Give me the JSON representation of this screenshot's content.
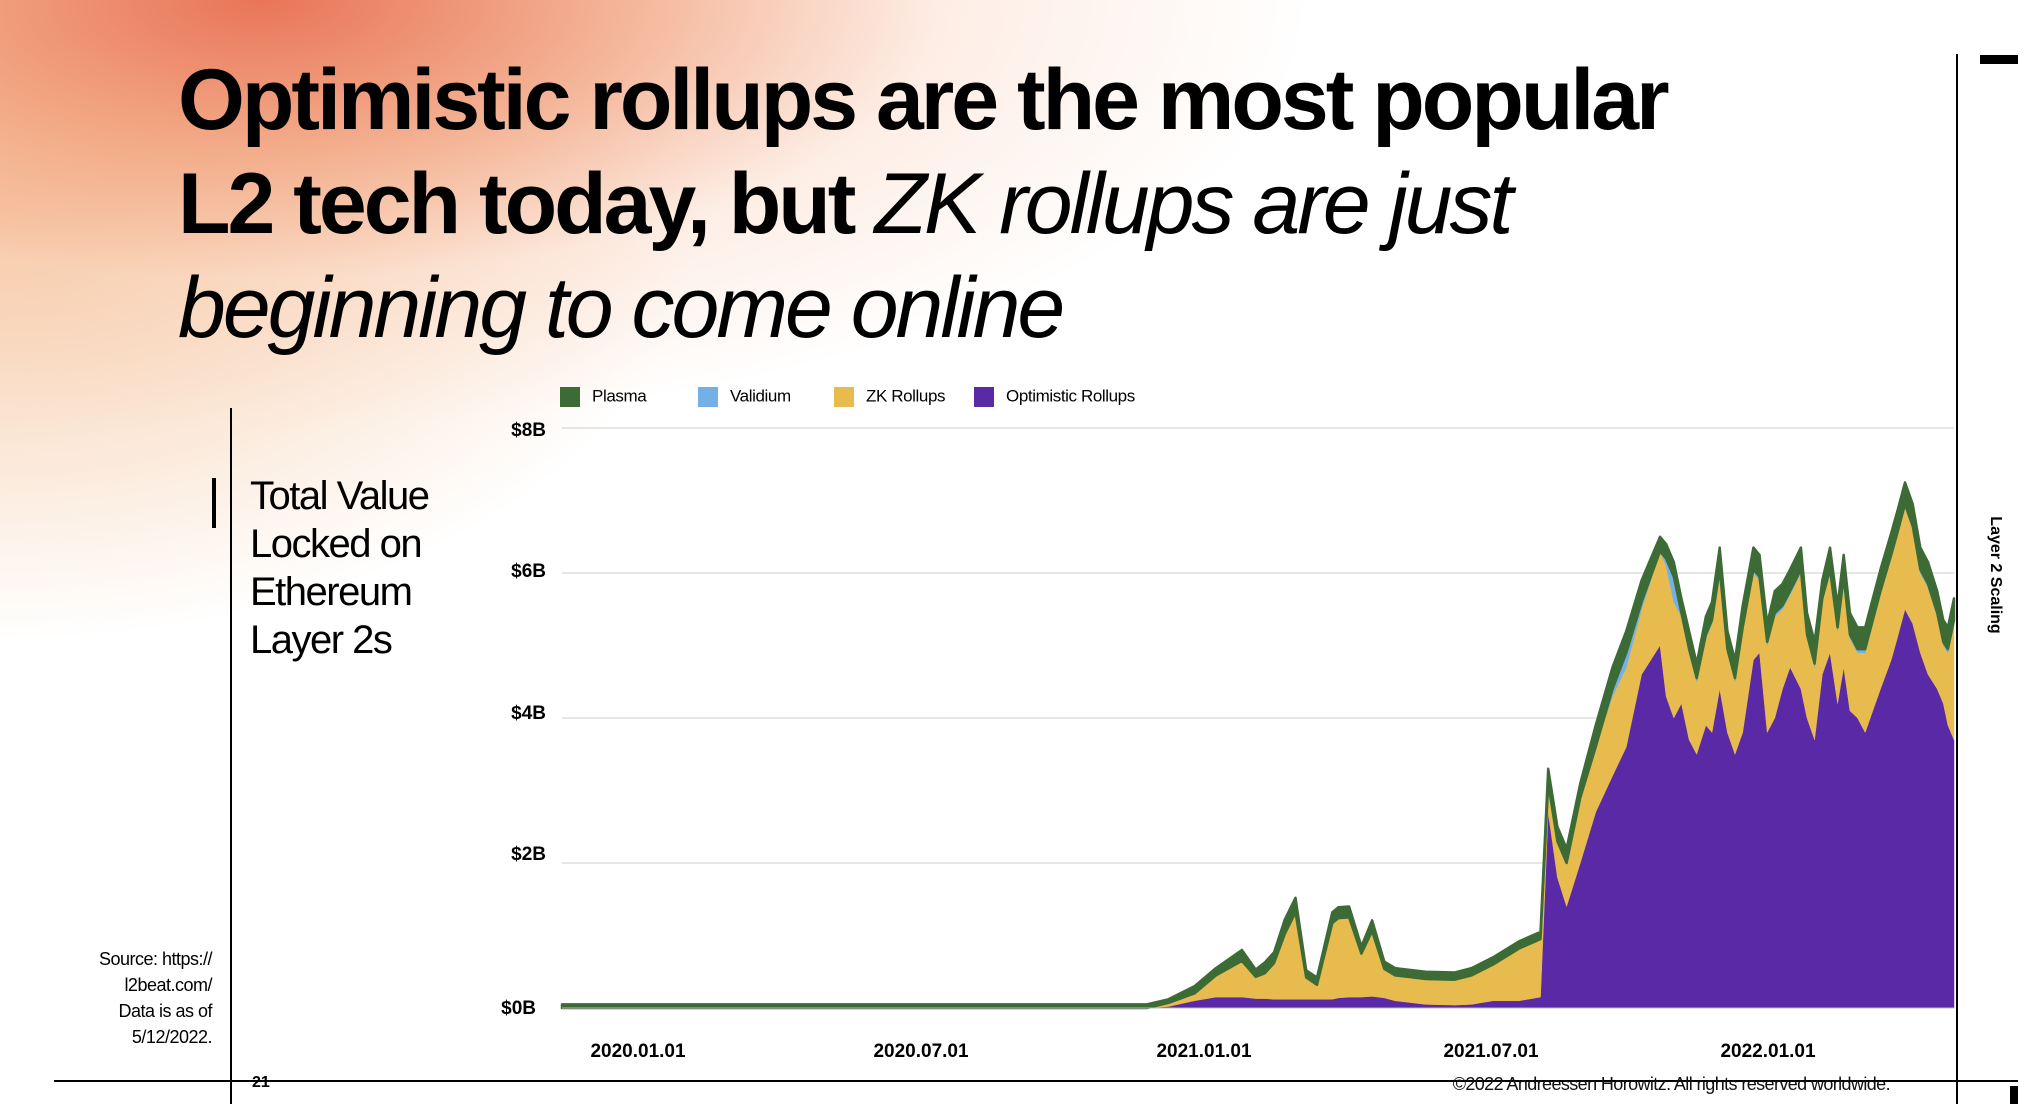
{
  "slide": {
    "title_bold": "Optimistic rollups are the most popular L2 tech today, but",
    "title_italic": "ZK rollups are just beginning to come online",
    "side_title_lines": [
      "Total Value",
      "Locked on",
      "Ethereum",
      "Layer 2s"
    ],
    "source_lines": [
      "Source: https://",
      "l2beat.com/",
      "Data is as of",
      "5/12/2022."
    ],
    "page_number": "21",
    "copyright": "©2022 Andreessen Horowitz. All rights reserved worldwide.",
    "section_label": "Layer 2 Scaling"
  },
  "chart_data": {
    "type": "area",
    "stacked": true,
    "y_tick_labels": [
      "$0B",
      "$2B",
      "$4B",
      "$6B",
      "$8B"
    ],
    "y_ticks": [
      0,
      2,
      4,
      6,
      8
    ],
    "ylim": [
      0,
      8
    ],
    "y_unit": "billion USD",
    "x_tick_labels": [
      "2020.01.01",
      "2020.07.01",
      "2021.01.01",
      "2021.07.01",
      "2022.01.01"
    ],
    "x_tick_dates": [
      "2020-01-01",
      "2020-07-01",
      "2021-01-01",
      "2021-07-01",
      "2022-01-01"
    ],
    "xlim": [
      "2019-11-15",
      "2022-05-12"
    ],
    "grid": "horizontal",
    "legend_position": "top",
    "series": [
      {
        "name": "Plasma",
        "color": "#3d6b36"
      },
      {
        "name": "Validium",
        "color": "#74b0e6"
      },
      {
        "name": "ZK Rollups",
        "color": "#e8bb4e"
      },
      {
        "name": "Optimistic Rollups",
        "color": "#5a2aa6"
      }
    ],
    "x": [
      "2019-11-15",
      "2020-06-01",
      "2020-12-01",
      "2020-12-15",
      "2021-01-01",
      "2021-01-15",
      "2021-02-01",
      "2021-02-10",
      "2021-02-16",
      "2021-02-22",
      "2021-03-01",
      "2021-03-08",
      "2021-03-15",
      "2021-03-22",
      "2021-04-01",
      "2021-04-05",
      "2021-04-12",
      "2021-04-20",
      "2021-04-27",
      "2021-05-05",
      "2021-05-12",
      "2021-05-20",
      "2021-06-01",
      "2021-06-20",
      "2021-07-01",
      "2021-07-15",
      "2021-08-01",
      "2021-08-15",
      "2021-08-20",
      "2021-08-26",
      "2021-09-01",
      "2021-09-10",
      "2021-09-20",
      "2021-10-01",
      "2021-10-10",
      "2021-10-20",
      "2021-11-01",
      "2021-11-05",
      "2021-11-10",
      "2021-11-15",
      "2021-11-20",
      "2021-11-25",
      "2021-12-01",
      "2021-12-05",
      "2021-12-10",
      "2021-12-15",
      "2021-12-20",
      "2021-12-25",
      "2022-01-01",
      "2022-01-05",
      "2022-01-10",
      "2022-01-15",
      "2022-01-20",
      "2022-01-25",
      "2022-02-01",
      "2022-02-05",
      "2022-02-10",
      "2022-02-15",
      "2022-02-20",
      "2022-02-25",
      "2022-03-01",
      "2022-03-05",
      "2022-03-10",
      "2022-03-15",
      "2022-03-20",
      "2022-03-25",
      "2022-04-01",
      "2022-04-05",
      "2022-04-10",
      "2022-04-15",
      "2022-04-20",
      "2022-04-25",
      "2022-05-01",
      "2022-05-05",
      "2022-05-08",
      "2022-05-12"
    ],
    "values": {
      "Optimistic Rollups": [
        0,
        0,
        0,
        0.02,
        0.1,
        0.15,
        0.15,
        0.13,
        0.13,
        0.12,
        0.12,
        0.12,
        0.12,
        0.12,
        0.12,
        0.14,
        0.15,
        0.15,
        0.16,
        0.14,
        0.1,
        0.08,
        0.05,
        0.04,
        0.05,
        0.1,
        0.1,
        0.15,
        2.7,
        1.8,
        1.4,
        2.0,
        2.7,
        3.2,
        3.6,
        4.6,
        5.0,
        4.3,
        4.0,
        4.2,
        3.7,
        3.5,
        3.9,
        3.8,
        4.4,
        3.8,
        3.5,
        3.8,
        4.8,
        4.9,
        3.8,
        4.0,
        4.4,
        4.7,
        4.4,
        4.0,
        3.7,
        4.6,
        4.9,
        4.2,
        4.7,
        4.1,
        4.0,
        3.8,
        4.1,
        4.4,
        4.8,
        5.1,
        5.5,
        5.3,
        4.9,
        4.6,
        4.4,
        4.2,
        3.9,
        3.7
      ],
      "ZK Rollups": [
        0,
        0,
        0,
        0.05,
        0.1,
        0.3,
        0.5,
        0.3,
        0.35,
        0.5,
        0.9,
        1.2,
        0.3,
        0.2,
        1.05,
        1.1,
        1.1,
        0.6,
        0.9,
        0.4,
        0.35,
        0.35,
        0.35,
        0.35,
        0.4,
        0.5,
        0.72,
        0.8,
        0.4,
        0.5,
        0.6,
        0.9,
        0.9,
        1.1,
        1.1,
        0.9,
        1.3,
        1.8,
        1.6,
        1.2,
        1.2,
        1.0,
        1.2,
        1.5,
        1.6,
        1.1,
        1.0,
        1.4,
        1.2,
        1.0,
        1.2,
        1.4,
        1.1,
        1.0,
        1.6,
        1.1,
        1.0,
        1.0,
        1.1,
        1.0,
        1.2,
        1.0,
        0.9,
        1.1,
        1.2,
        1.3,
        1.4,
        1.4,
        1.4,
        1.3,
        1.1,
        1.2,
        1.0,
        0.8,
        1.0,
        1.6
      ],
      "Validium": [
        0,
        0,
        0,
        0,
        0,
        0,
        0,
        0,
        0,
        0,
        0,
        0,
        0,
        0,
        0,
        0,
        0,
        0,
        0,
        0,
        0,
        0,
        0,
        0,
        0,
        0,
        0,
        0,
        0,
        0,
        0,
        0,
        0,
        0.1,
        0.2,
        0.1,
        0.0,
        0.1,
        0.35,
        0.05,
        0.05,
        0.05,
        0.05,
        0.05,
        0.05,
        0.05,
        0.05,
        0.05,
        0.05,
        0.05,
        0.05,
        0.05,
        0.05,
        0.05,
        0.05,
        0.05,
        0.05,
        0.05,
        0.05,
        0.05,
        0.05,
        0.05,
        0.05,
        0.05,
        0.05,
        0.05,
        0.05,
        0.05,
        0.05,
        0.05,
        0.05,
        0.05,
        0.05,
        0.05,
        0.05,
        0.05
      ],
      "Plasma": [
        0.05,
        0.05,
        0.05,
        0.05,
        0.1,
        0.1,
        0.15,
        0.1,
        0.15,
        0.15,
        0.2,
        0.2,
        0.1,
        0.1,
        0.15,
        0.15,
        0.15,
        0.1,
        0.15,
        0.1,
        0.1,
        0.1,
        0.1,
        0.1,
        0.1,
        0.1,
        0.1,
        0.1,
        0.2,
        0.2,
        0.2,
        0.2,
        0.3,
        0.3,
        0.3,
        0.3,
        0.2,
        0.2,
        0.2,
        0.2,
        0.25,
        0.2,
        0.25,
        0.25,
        0.3,
        0.25,
        0.25,
        0.3,
        0.3,
        0.3,
        0.25,
        0.3,
        0.3,
        0.3,
        0.3,
        0.3,
        0.3,
        0.25,
        0.3,
        0.3,
        0.3,
        0.3,
        0.3,
        0.3,
        0.3,
        0.3,
        0.3,
        0.3,
        0.3,
        0.3,
        0.3,
        0.3,
        0.3,
        0.3,
        0.3,
        0.3
      ]
    }
  }
}
